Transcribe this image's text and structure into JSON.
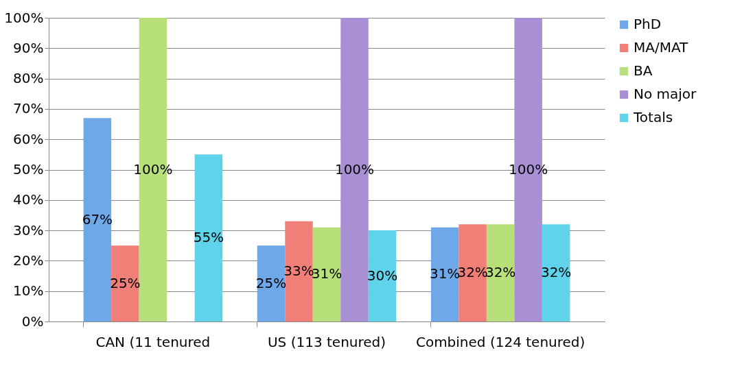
{
  "chart_data": {
    "type": "bar",
    "categories": [
      "CAN (11 tenured",
      "US (113 tenured)",
      "Combined (124 tenured)"
    ],
    "series": [
      {
        "name": "PhD",
        "color": "#6fa8e8",
        "values": [
          67,
          25,
          31
        ],
        "value_labels": [
          "67%",
          "25%",
          "31%"
        ]
      },
      {
        "name": "MA/MAT",
        "color": "#f07f78",
        "values": [
          25,
          33,
          32
        ],
        "value_labels": [
          "25%",
          "33%",
          "32%"
        ]
      },
      {
        "name": "BA",
        "color": "#b8e07a",
        "values": [
          100,
          31,
          32
        ],
        "value_labels": [
          "100%",
          "31%",
          "32%"
        ]
      },
      {
        "name": "No major",
        "color": "#a98fd4",
        "values": [
          null,
          100,
          100
        ],
        "value_labels": [
          null,
          "100%",
          "100%"
        ]
      },
      {
        "name": "Totals",
        "color": "#5fd3ea",
        "values": [
          55,
          30,
          32
        ],
        "value_labels": [
          "55%",
          "30%",
          "32%"
        ]
      }
    ],
    "ylim": [
      0,
      100
    ],
    "yticks": [
      {
        "value": 0,
        "label": "0%"
      },
      {
        "value": 10,
        "label": "10%"
      },
      {
        "value": 20,
        "label": "20%"
      },
      {
        "value": 30,
        "label": "30%"
      },
      {
        "value": 40,
        "label": "40%"
      },
      {
        "value": 50,
        "label": "50%"
      },
      {
        "value": 60,
        "label": "60%"
      },
      {
        "value": 70,
        "label": "70%"
      },
      {
        "value": 80,
        "label": "80%"
      },
      {
        "value": 90,
        "label": "90%"
      },
      {
        "value": 100,
        "label": "100%"
      }
    ],
    "grid": "y",
    "legend": "right"
  }
}
